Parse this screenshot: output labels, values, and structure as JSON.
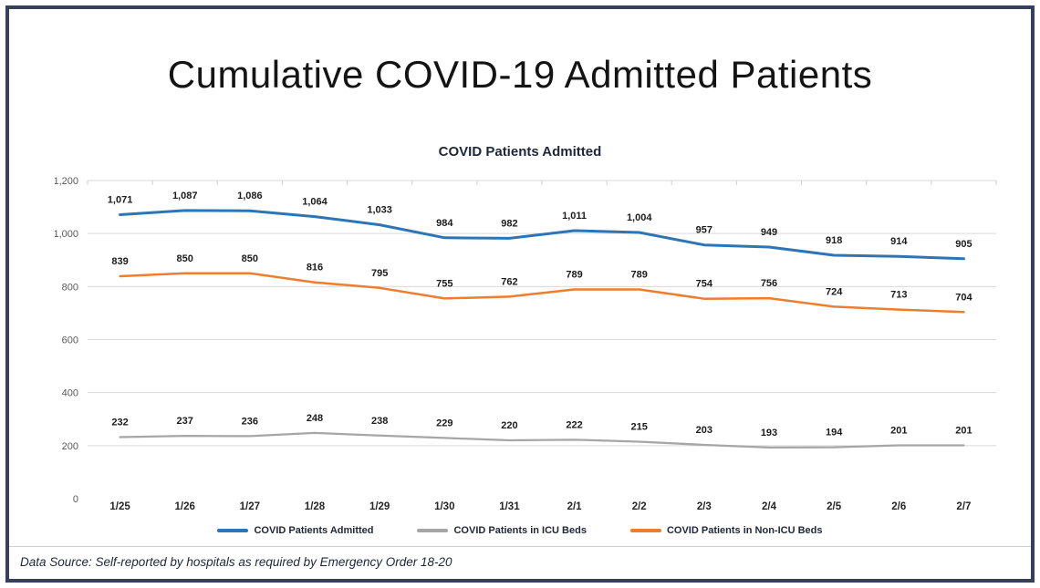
{
  "page": {
    "title": "Cumulative COVID-19 Admitted Patients",
    "footer": "Data Source: Self-reported by hospitals as required by Emergency Order 18-20"
  },
  "colors": {
    "frame_border": "#36405A",
    "grid": "#D9D9D9",
    "tick": "#CFCFCF",
    "axis_text": "#595959",
    "label_text": "#1B1B1B",
    "heading_text": "#1F2638"
  },
  "chart_data": {
    "type": "line",
    "title": "COVID Patients Admitted",
    "categories": [
      "1/25",
      "1/26",
      "1/27",
      "1/28",
      "1/29",
      "1/30",
      "1/31",
      "2/1",
      "2/2",
      "2/3",
      "2/4",
      "2/5",
      "2/6",
      "2/7"
    ],
    "series": [
      {
        "name": "COVID Patients Admitted",
        "color": "#2E75B6",
        "width": 3,
        "values": [
          1071,
          1087,
          1086,
          1064,
          1033,
          984,
          982,
          1011,
          1004,
          957,
          949,
          918,
          914,
          905
        ]
      },
      {
        "name": "COVID Patients in ICU Beds",
        "color": "#A6A6A6",
        "width": 2.25,
        "values": [
          232,
          237,
          236,
          248,
          238,
          229,
          220,
          222,
          215,
          203,
          193,
          194,
          201,
          201
        ]
      },
      {
        "name": "COVID Patients in Non-ICU Beds",
        "color": "#ED7D31",
        "width": 2.5,
        "values": [
          839,
          850,
          850,
          816,
          795,
          755,
          762,
          789,
          789,
          754,
          756,
          724,
          713,
          704
        ]
      }
    ],
    "ylim": [
      0,
      1200
    ],
    "yticks": [
      0,
      200,
      400,
      600,
      800,
      1000,
      1200
    ],
    "grid": true,
    "data_labels": true,
    "legend_position": "bottom"
  }
}
